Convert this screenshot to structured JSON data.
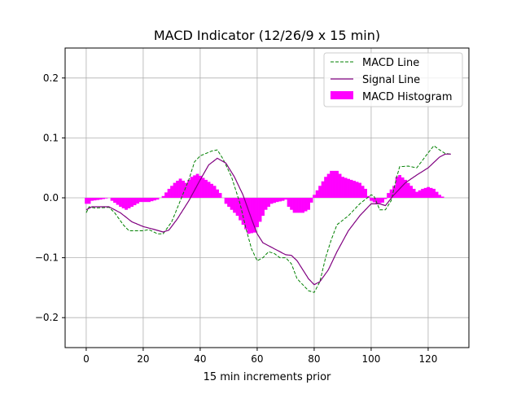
{
  "chart_data": {
    "type": "line",
    "title": "MACD Indicator (12/26/9 x 15 min)",
    "xlabel": "15 min increments prior",
    "ylabel": "",
    "xlim": [
      -7.4,
      134.3
    ],
    "ylim": [
      -0.25,
      0.25
    ],
    "xticks": [
      0,
      20,
      40,
      60,
      80,
      100,
      120
    ],
    "xtick_labels": [
      "0",
      "20",
      "40",
      "60",
      "80",
      "100",
      "120"
    ],
    "yticks": [
      -0.2,
      -0.1,
      0.0,
      0.1,
      0.2
    ],
    "ytick_labels": [
      "−0.2",
      "−0.1",
      "0.0",
      "0.1",
      "0.2"
    ],
    "grid": true,
    "legend_position": "top-right",
    "series": [
      {
        "name": "MACD Line",
        "kind": "line",
        "style": "dashed",
        "color": "#008000",
        "x": [
          0,
          1,
          3,
          8,
          10,
          13,
          15,
          20,
          22,
          25,
          27,
          30,
          33,
          36,
          38,
          40,
          44,
          46,
          48,
          51,
          54,
          56,
          58,
          60,
          62,
          64,
          66,
          68,
          70,
          72,
          74,
          76,
          78,
          80,
          82,
          84,
          86,
          88,
          92,
          96,
          100,
          101,
          103,
          105,
          107,
          109,
          110,
          113,
          116,
          120,
          122,
          124,
          126,
          128
        ],
        "y": [
          -0.025,
          -0.015,
          -0.017,
          -0.016,
          -0.025,
          -0.045,
          -0.055,
          -0.055,
          -0.053,
          -0.06,
          -0.06,
          -0.04,
          -0.005,
          0.03,
          0.06,
          0.07,
          0.078,
          0.08,
          0.065,
          0.035,
          -0.01,
          -0.05,
          -0.085,
          -0.105,
          -0.1,
          -0.09,
          -0.093,
          -0.1,
          -0.1,
          -0.11,
          -0.135,
          -0.145,
          -0.155,
          -0.158,
          -0.14,
          -0.1,
          -0.07,
          -0.045,
          -0.03,
          -0.01,
          0.005,
          0.003,
          -0.02,
          -0.02,
          -0.005,
          0.035,
          0.052,
          0.053,
          0.05,
          0.075,
          0.087,
          0.08,
          0.074,
          0.073
        ]
      },
      {
        "name": "Signal Line",
        "kind": "line",
        "style": "solid",
        "color": "#800080",
        "x": [
          0,
          2,
          8,
          12,
          16,
          20,
          24,
          27,
          29,
          32,
          36,
          40,
          43,
          46,
          49,
          52,
          55,
          58,
          60,
          62,
          66,
          70,
          72,
          74,
          78,
          80,
          82,
          85,
          88,
          92,
          96,
          100,
          103,
          105,
          108,
          112,
          116,
          120,
          124,
          126,
          128
        ],
        "y": [
          -0.02,
          -0.015,
          -0.015,
          -0.025,
          -0.04,
          -0.048,
          -0.053,
          -0.057,
          -0.054,
          -0.035,
          -0.005,
          0.03,
          0.055,
          0.066,
          0.058,
          0.035,
          0.005,
          -0.035,
          -0.06,
          -0.075,
          -0.085,
          -0.095,
          -0.096,
          -0.105,
          -0.135,
          -0.145,
          -0.14,
          -0.12,
          -0.09,
          -0.055,
          -0.03,
          -0.01,
          -0.01,
          -0.013,
          0.005,
          0.025,
          0.038,
          0.05,
          0.068,
          0.073,
          0.073
        ]
      },
      {
        "name": "MACD Histogram",
        "kind": "bar",
        "color": "#ff00ff",
        "x": [
          0,
          1,
          2,
          5,
          8,
          9,
          12,
          14,
          16,
          19,
          22,
          25,
          27,
          29,
          31,
          33,
          35,
          37,
          39,
          42,
          45,
          47,
          48,
          49,
          51,
          53,
          55,
          57,
          59,
          61,
          63,
          65,
          67,
          69,
          70,
          71,
          73,
          76,
          78,
          79,
          80,
          82,
          84,
          86,
          88,
          90,
          93,
          96,
          98,
          99,
          100,
          102,
          104,
          105,
          106,
          108,
          109,
          110,
          112,
          114,
          116,
          118,
          120,
          122,
          124,
          125,
          126
        ],
        "y": [
          -0.01,
          -0.01,
          -0.005,
          -0.003,
          0,
          -0.005,
          -0.015,
          -0.02,
          -0.015,
          -0.007,
          -0.007,
          -0.003,
          0.003,
          0.015,
          0.025,
          0.032,
          0.025,
          0.035,
          0.04,
          0.03,
          0.02,
          0.008,
          0,
          -0.01,
          -0.02,
          -0.03,
          -0.045,
          -0.06,
          -0.058,
          -0.04,
          -0.02,
          -0.01,
          -0.007,
          -0.005,
          -0.003,
          -0.015,
          -0.025,
          -0.025,
          -0.02,
          -0.008,
          0.005,
          0.02,
          0.035,
          0.045,
          0.045,
          0.035,
          0.03,
          0.025,
          0.015,
          0.003,
          -0.005,
          -0.01,
          -0.008,
          -0.002,
          0.008,
          0.02,
          0.035,
          0.038,
          0.03,
          0.02,
          0.01,
          0.015,
          0.018,
          0.015,
          0.005,
          0.002,
          0
        ]
      }
    ]
  }
}
